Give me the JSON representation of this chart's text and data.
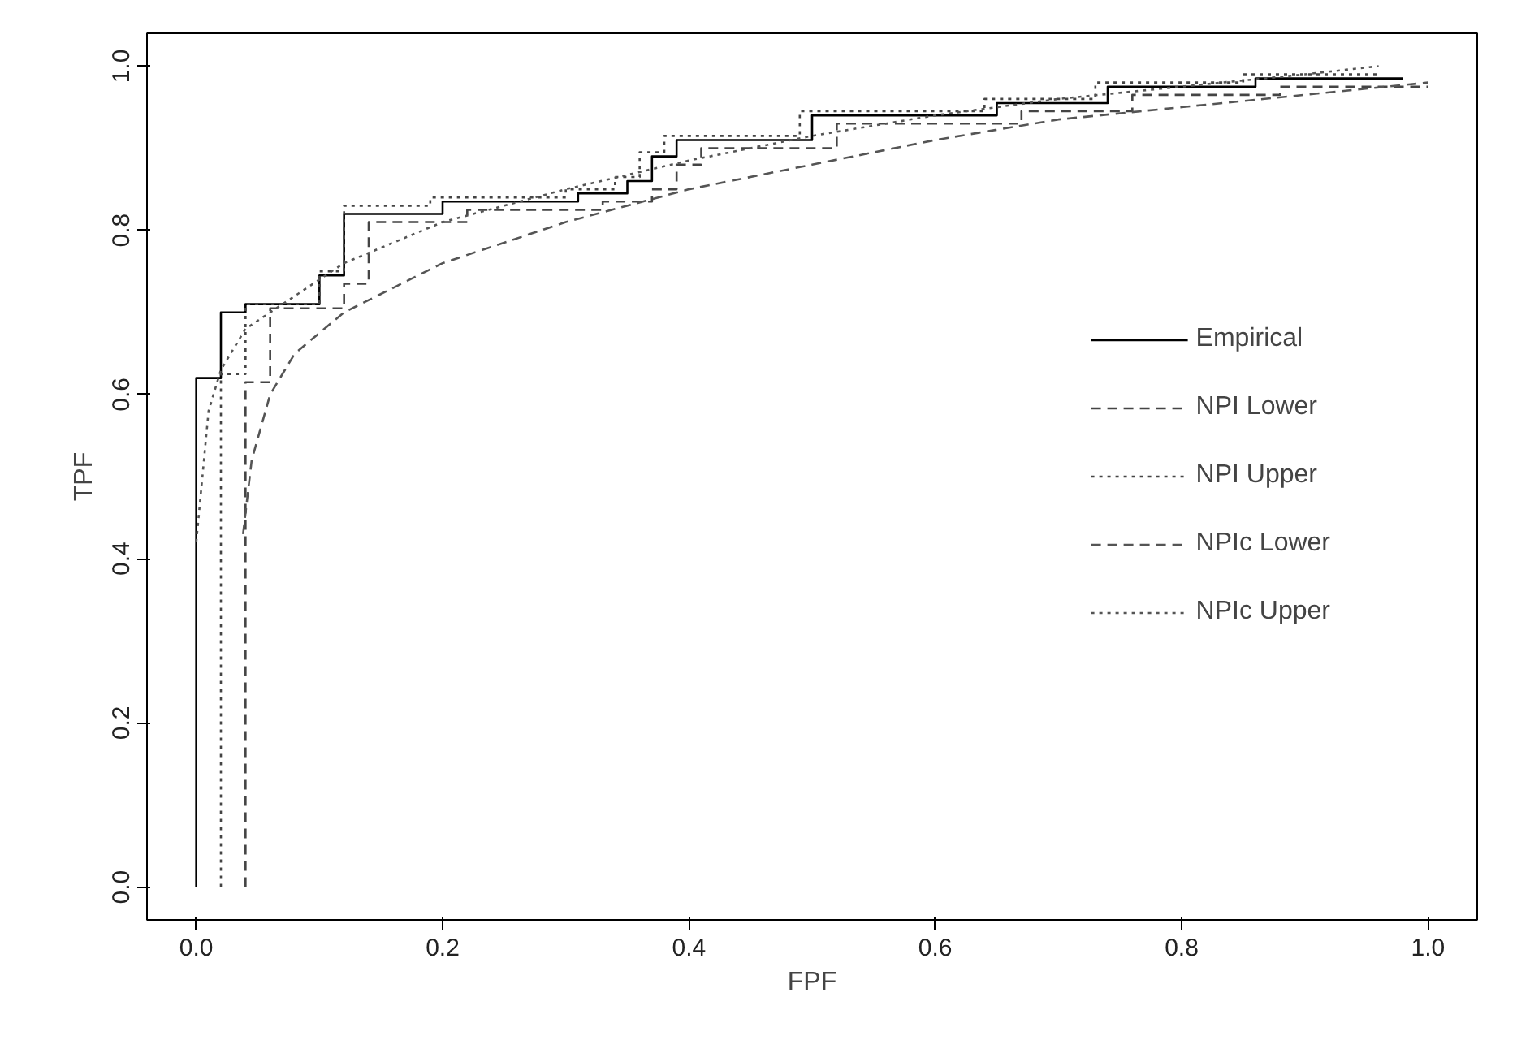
{
  "chart_data": {
    "type": "step",
    "xlabel": "FPF",
    "ylabel": "TPF",
    "xlim": [
      -0.04,
      1.04
    ],
    "ylim": [
      -0.04,
      1.04
    ],
    "xticks": [
      {
        "value": 0,
        "label": "0.0"
      },
      0.2,
      0.4,
      0.6,
      0.8,
      {
        "value": 1,
        "label": "1.0"
      }
    ],
    "yticks": [
      {
        "value": 0,
        "label": "0.0"
      },
      0.2,
      0.4,
      0.6,
      0.8,
      {
        "value": 1,
        "label": "1.0"
      }
    ],
    "grid": false,
    "legend": "right",
    "series": [
      {
        "name": "Empirical",
        "line_style": "solid",
        "color": "#000000",
        "x": [
          0,
          0,
          0.02,
          0.04,
          0.1,
          0.12,
          0.2,
          0.31,
          0.35,
          0.37,
          0.39,
          0.5,
          0.65,
          0.74,
          0.86,
          0.98
        ],
        "values": [
          0,
          0.62,
          0.7,
          0.71,
          0.745,
          0.82,
          0.835,
          0.845,
          0.86,
          0.89,
          0.91,
          0.94,
          0.955,
          0.975,
          0.985,
          0.985
        ]
      },
      {
        "name": "NPI Lower",
        "line_style": "dashed",
        "color": "#444444",
        "x": [
          0.04,
          0.04,
          0.06,
          0.12,
          0.14,
          0.22,
          0.33,
          0.37,
          0.39,
          0.41,
          0.52,
          0.67,
          0.76,
          0.88,
          1.0
        ],
        "values": [
          0,
          0.615,
          0.705,
          0.735,
          0.81,
          0.825,
          0.835,
          0.85,
          0.88,
          0.9,
          0.93,
          0.945,
          0.965,
          0.975,
          0.975
        ]
      },
      {
        "name": "NPI Upper",
        "line_style": "dotted",
        "color": "#444444",
        "x": [
          0.02,
          0.02,
          0.04,
          0.1,
          0.12,
          0.19,
          0.3,
          0.34,
          0.36,
          0.38,
          0.49,
          0.64,
          0.73,
          0.85,
          0.96
        ],
        "values": [
          0,
          0.625,
          0.71,
          0.75,
          0.83,
          0.84,
          0.85,
          0.865,
          0.895,
          0.915,
          0.945,
          0.96,
          0.98,
          0.99,
          0.99
        ]
      },
      {
        "name": "NPIc Lower",
        "type": "line",
        "line_style": "dashed",
        "color": "#555555",
        "x": [
          0.038,
          0.045,
          0.06,
          0.08,
          0.12,
          0.2,
          0.3,
          0.4,
          0.5,
          0.6,
          0.7,
          0.8,
          0.9,
          1.0
        ],
        "values": [
          0.43,
          0.52,
          0.6,
          0.65,
          0.7,
          0.76,
          0.81,
          0.85,
          0.88,
          0.91,
          0.935,
          0.95,
          0.965,
          0.98
        ]
      },
      {
        "name": "NPIc Upper",
        "type": "line",
        "line_style": "dotted",
        "color": "#555555",
        "x": [
          0,
          0.005,
          0.01,
          0.02,
          0.04,
          0.08,
          0.12,
          0.2,
          0.3,
          0.4,
          0.5,
          0.6,
          0.7,
          0.8,
          0.9,
          0.96
        ],
        "values": [
          0.42,
          0.5,
          0.58,
          0.63,
          0.68,
          0.72,
          0.76,
          0.81,
          0.85,
          0.885,
          0.915,
          0.94,
          0.96,
          0.975,
          0.99,
          1.0
        ]
      }
    ]
  }
}
